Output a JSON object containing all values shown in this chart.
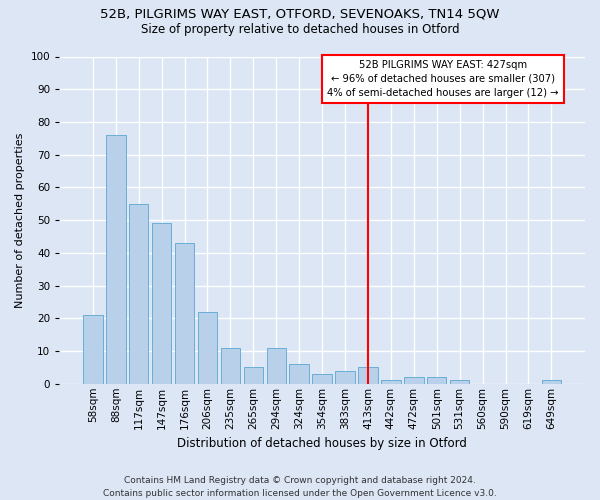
{
  "title": "52B, PILGRIMS WAY EAST, OTFORD, SEVENOAKS, TN14 5QW",
  "subtitle": "Size of property relative to detached houses in Otford",
  "xlabel": "Distribution of detached houses by size in Otford",
  "ylabel": "Number of detached properties",
  "footer_line1": "Contains HM Land Registry data © Crown copyright and database right 2024.",
  "footer_line2": "Contains public sector information licensed under the Open Government Licence v3.0.",
  "categories": [
    "58sqm",
    "88sqm",
    "117sqm",
    "147sqm",
    "176sqm",
    "206sqm",
    "235sqm",
    "265sqm",
    "294sqm",
    "324sqm",
    "354sqm",
    "383sqm",
    "413sqm",
    "442sqm",
    "472sqm",
    "501sqm",
    "531sqm",
    "560sqm",
    "590sqm",
    "619sqm",
    "649sqm"
  ],
  "values": [
    21,
    76,
    55,
    49,
    43,
    22,
    11,
    5,
    11,
    6,
    3,
    4,
    5,
    1,
    2,
    2,
    1,
    0,
    0,
    0,
    1
  ],
  "bar_color": "#b8d0ea",
  "bar_edge_color": "#6aaed6",
  "vline_x_index": 12,
  "vline_color": "red",
  "annotation_text": "52B PILGRIMS WAY EAST: 427sqm\n← 96% of detached houses are smaller (307)\n4% of semi-detached houses are larger (12) →",
  "annotation_box_facecolor": "white",
  "annotation_box_edgecolor": "red",
  "ylim": [
    0,
    100
  ],
  "yticks": [
    0,
    10,
    20,
    30,
    40,
    50,
    60,
    70,
    80,
    90,
    100
  ],
  "background_color": "#dce6f5",
  "plot_background_color": "#dce6f5",
  "title_fontsize": 9.5,
  "subtitle_fontsize": 8.5,
  "xlabel_fontsize": 8.5,
  "ylabel_fontsize": 8,
  "grid_color": "white",
  "tick_fontsize": 7.5,
  "footer_fontsize": 6.5
}
